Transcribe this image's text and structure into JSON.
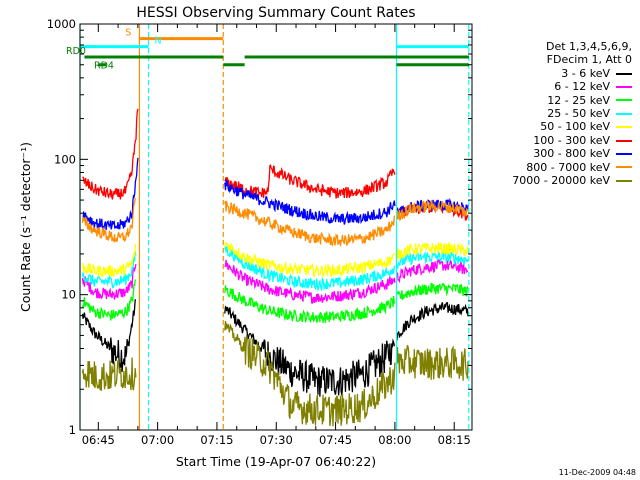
{
  "chart_data": {
    "type": "line",
    "title": "HESSI Observing Summary Count Rates",
    "xlabel": "Start Time (19-Apr-07 06:40:22)",
    "ylabel": "Count Rate (s⁻¹ detector⁻¹)",
    "y_scale": "log",
    "ylim": [
      1,
      1000
    ],
    "xlim_minutes": [
      40.37,
      139.5
    ],
    "x_ticks": [
      {
        "minute": 45,
        "label": "06:45"
      },
      {
        "minute": 60,
        "label": "07:00"
      },
      {
        "minute": 75,
        "label": "07:15"
      },
      {
        "minute": 90,
        "label": "07:30"
      },
      {
        "minute": 105,
        "label": "07:45"
      },
      {
        "minute": 120,
        "label": "08:00"
      },
      {
        "minute": 135,
        "label": "08:15"
      }
    ],
    "y_ticks": [
      {
        "value": 1,
        "label": "1"
      },
      {
        "value": 10,
        "label": "10"
      },
      {
        "value": 100,
        "label": "100"
      },
      {
        "value": 1000,
        "label": "1000"
      }
    ],
    "legend_header": [
      "Det 1,3,4,5,6,9,",
      "FDecim 1, Att 0"
    ],
    "series": [
      {
        "name": "3 - 6 keV",
        "color": "#000000",
        "segments": [
          {
            "x": [
              41,
              44,
              48,
              50,
              52,
              53.5,
              54.5
            ],
            "y": [
              7,
              5.2,
              4,
              3.6,
              3.5,
              6,
              9
            ]
          },
          {
            "x": [
              77,
              82,
              88,
              94,
              100,
              106,
              112,
              118,
              120
            ],
            "y": [
              8,
              5.5,
              3.6,
              2.7,
              2.3,
              2.3,
              2.6,
              3.5,
              4.5
            ]
          },
          {
            "x": [
              120.5,
              124,
              128,
              132,
              136,
              138.5
            ],
            "y": [
              5,
              6.5,
              7.5,
              8,
              7.8,
              7.5
            ]
          }
        ]
      },
      {
        "name": "6 - 12 keV",
        "color": "#ff00ff",
        "segments": [
          {
            "x": [
              41,
              44,
              48,
              50,
              52,
              53.5,
              54.5
            ],
            "y": [
              13,
              10.5,
              10,
              10.2,
              10.5,
              12,
              18
            ]
          },
          {
            "x": [
              77,
              82,
              88,
              94,
              100,
              106,
              112,
              118,
              120
            ],
            "y": [
              17,
              13,
              11,
              10,
              9.5,
              9.8,
              10.5,
              12,
              13
            ]
          },
          {
            "x": [
              120.5,
              124,
              128,
              132,
              136,
              138.5
            ],
            "y": [
              13.5,
              15,
              16,
              16.5,
              16,
              15
            ]
          }
        ]
      },
      {
        "name": "12 - 25 keV",
        "color": "#00ff00",
        "segments": [
          {
            "x": [
              41,
              44,
              48,
              50,
              52,
              53.5,
              54.5
            ],
            "y": [
              9,
              7.5,
              7,
              7.2,
              7.5,
              9,
              13
            ]
          },
          {
            "x": [
              77,
              82,
              88,
              94,
              100,
              106,
              112,
              118,
              120
            ],
            "y": [
              11,
              9,
              7.6,
              7,
              6.8,
              6.9,
              7.3,
              8.2,
              9
            ]
          },
          {
            "x": [
              120.5,
              124,
              128,
              132,
              136,
              138.5
            ],
            "y": [
              9.5,
              10.5,
              11,
              11.2,
              11,
              10.5
            ]
          }
        ]
      },
      {
        "name": "25 - 50 keV",
        "color": "#00ffff",
        "segments": [
          {
            "x": [
              41,
              44,
              48,
              50,
              52,
              53.5,
              54.5
            ],
            "y": [
              14,
              12.5,
              12.5,
              12.5,
              13,
              15,
              20
            ]
          },
          {
            "x": [
              77,
              82,
              88,
              94,
              100,
              106,
              112,
              118,
              120
            ],
            "y": [
              22,
              17,
              14,
              12.5,
              12,
              12.2,
              13,
              14.5,
              16
            ]
          },
          {
            "x": [
              120.5,
              124,
              128,
              132,
              136,
              138.5
            ],
            "y": [
              17,
              18.5,
              19,
              19,
              18.5,
              18
            ]
          }
        ]
      },
      {
        "name": "50 - 100 keV",
        "color": "#ffff00",
        "segments": [
          {
            "x": [
              41,
              44,
              48,
              50,
              52,
              53.5,
              54.5
            ],
            "y": [
              16,
              15,
              15,
              15,
              15.5,
              17,
              22
            ]
          },
          {
            "x": [
              77,
              82,
              88,
              94,
              100,
              106,
              112,
              118,
              120
            ],
            "y": [
              24,
              19,
              16.5,
              15.5,
              15,
              15.2,
              16,
              17.5,
              19
            ]
          },
          {
            "x": [
              120.5,
              124,
              128,
              132,
              136,
              138.5
            ],
            "y": [
              20,
              21.5,
              22,
              22,
              21.5,
              21
            ]
          }
        ]
      },
      {
        "name": "100 - 300 keV",
        "color": "#ff0000",
        "segments": [
          {
            "x": [
              41,
              44,
              48,
              50,
              52,
              53.5,
              54.5,
              55
            ],
            "y": [
              70,
              60,
              55,
              55,
              58,
              80,
              150,
              240
            ]
          },
          {
            "x": [
              77,
              82,
              86,
              88,
              88.3,
              94,
              100,
              106,
              112,
              118,
              120
            ],
            "y": [
              68,
              60,
              56,
              58,
              85,
              70,
              60,
              56,
              58,
              68,
              85
            ]
          },
          {
            "x": [
              120.5,
              124,
              128,
              132,
              136,
              138.5
            ],
            "y": [
              40,
              42,
              44,
              44,
              42,
              38
            ]
          }
        ]
      },
      {
        "name": "300 - 800 keV",
        "color": "#0000ff",
        "segments": [
          {
            "x": [
              41,
              44,
              48,
              50,
              52,
              53.5,
              54.5,
              55
            ],
            "y": [
              40,
              34,
              32,
              32,
              34,
              40,
              70,
              110
            ]
          },
          {
            "x": [
              77,
              82,
              88,
              94,
              100,
              106,
              112,
              118,
              120
            ],
            "y": [
              65,
              55,
              48,
              42,
              38,
              36,
              37,
              41,
              48
            ]
          },
          {
            "x": [
              120.5,
              124,
              128,
              132,
              136,
              138.5
            ],
            "y": [
              40,
              44,
              46,
              46,
              45,
              43
            ]
          }
        ]
      },
      {
        "name": "800 - 7000 keV",
        "color": "#ff8c00",
        "segments": [
          {
            "x": [
              41,
              44,
              48,
              50,
              52,
              53.5,
              54.5
            ],
            "y": [
              35,
              30,
              27,
              26,
              27,
              32,
              55
            ]
          },
          {
            "x": [
              77,
              82,
              88,
              94,
              100,
              106,
              112,
              118,
              120
            ],
            "y": [
              45,
              40,
              34,
              29,
              26,
              25,
              26,
              30,
              36
            ]
          },
          {
            "x": [
              120.5,
              124,
              128,
              132,
              136,
              138.5
            ],
            "y": [
              38,
              43,
              45,
              45,
              43,
              40
            ]
          }
        ]
      },
      {
        "name": "7000 - 20000 keV",
        "color": "#808000",
        "segments": [
          {
            "x": [
              41,
              44,
              48,
              50,
              52,
              53.5,
              54.5
            ],
            "y": [
              2.8,
              2.5,
              2.5,
              2.6,
              2.6,
              2.6,
              2.6
            ]
          },
          {
            "x": [
              77,
              82,
              88,
              94,
              100,
              106,
              112,
              118,
              120
            ],
            "y": [
              6,
              4,
              3,
              1.5,
              1.4,
              1.4,
              1.5,
              2.2,
              2.6
            ]
          },
          {
            "x": [
              120.5,
              124,
              128,
              132,
              136,
              138.5
            ],
            "y": [
              3.2,
              3.2,
              3.1,
              3.1,
              3.1,
              3.0
            ]
          }
        ]
      }
    ],
    "vertical_markers": [
      {
        "minute": 40.37,
        "color": "#00ffff",
        "style": "solid"
      },
      {
        "minute": 55.4,
        "color": "#ff8c00",
        "style": "solid"
      },
      {
        "minute": 57.7,
        "color": "#00ffff",
        "style": "dashed"
      },
      {
        "minute": 76.6,
        "color": "#ff8c00",
        "style": "dashed"
      },
      {
        "minute": 120.4,
        "color": "#00ffff",
        "style": "solid"
      },
      {
        "minute": 138.7,
        "color": "#00ffff",
        "style": "dashed"
      }
    ],
    "flag_bars": [
      {
        "label": "S",
        "color": "#ff8c00",
        "level": 780,
        "spans": [
          [
            55.4,
            76.6
          ]
        ]
      },
      {
        "label": "N",
        "color": "#00ffff",
        "level": 680,
        "spans": [
          [
            40.37,
            57.7
          ],
          [
            120.4,
            138.7
          ]
        ]
      },
      {
        "label": "RD0",
        "color": "#008000",
        "level": 570,
        "spans": [
          [
            41.5,
            76.6
          ],
          [
            82,
            120.4
          ],
          [
            120.4,
            138.7
          ]
        ]
      },
      {
        "label": "RD4",
        "color": "#008000",
        "level": 500,
        "spans": [
          [
            45,
            47
          ],
          [
            76.6,
            82
          ],
          [
            120.4,
            138.7
          ]
        ]
      }
    ]
  },
  "footer": {
    "timestamp": "11-Dec-2009 04:48"
  }
}
